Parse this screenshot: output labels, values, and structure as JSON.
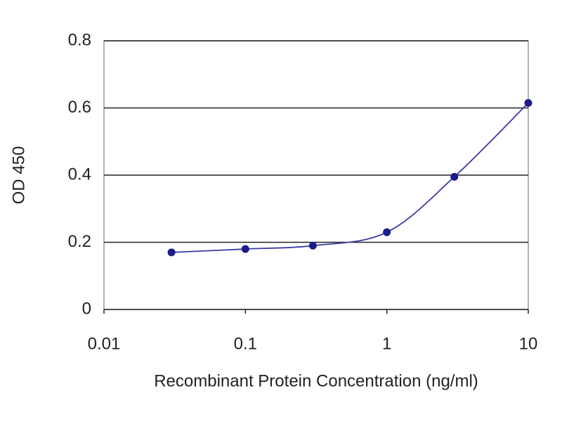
{
  "chart_data": {
    "type": "line",
    "x_label": "Recombinant Protein Concentration (ng/ml)",
    "y_label": "OD 450",
    "xscale": "log",
    "x": [
      0.03,
      0.1,
      0.3,
      1,
      3,
      10
    ],
    "series": [
      {
        "color": "#1c1c8a",
        "values": [
          0.17,
          0.18,
          0.19,
          0.23,
          0.395,
          0.615
        ]
      }
    ],
    "xlim": [
      0.01,
      10
    ],
    "xticks": [
      0.01,
      0.1,
      1,
      10
    ],
    "ylim": [
      0,
      0.8
    ],
    "yticks": [
      0,
      0.2,
      0.4,
      0.6,
      0.8
    ],
    "grid": true
  }
}
